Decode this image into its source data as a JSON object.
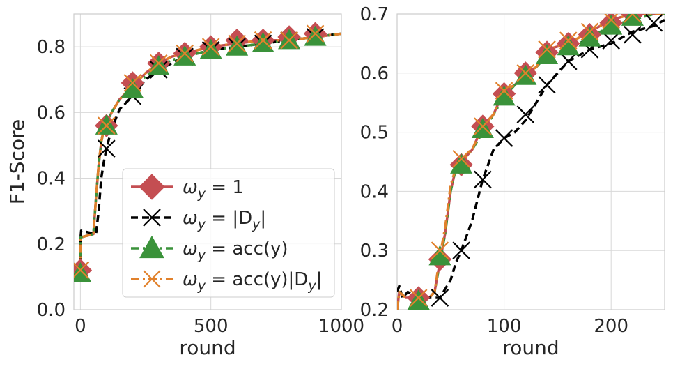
{
  "chart_data": [
    {
      "type": "line",
      "id": "left",
      "xlabel": "round",
      "ylabel": "F1-Score",
      "xlim": [
        -25,
        1000
      ],
      "ylim": [
        0.0,
        0.9
      ],
      "xticks": [
        0,
        500,
        1000
      ],
      "yticks": [
        0.0,
        0.2,
        0.4,
        0.6,
        0.8
      ],
      "xtick_labels": [
        "0",
        "500",
        "1000"
      ],
      "ytick_labels": [
        "0.0",
        "0.2",
        "0.4",
        "0.6",
        "0.8"
      ],
      "grid": true,
      "legend_position": "lower-right",
      "series": [
        {
          "name": "ω_y = 1",
          "key": "s1",
          "x": [
            0,
            1,
            50,
            60,
            70,
            80,
            90,
            100,
            120,
            150,
            200,
            250,
            300,
            350,
            400,
            500,
            600,
            700,
            800,
            900,
            1000
          ],
          "y": [
            0.12,
            0.22,
            0.23,
            0.34,
            0.44,
            0.51,
            0.55,
            0.57,
            0.6,
            0.64,
            0.68,
            0.72,
            0.75,
            0.77,
            0.78,
            0.8,
            0.81,
            0.82,
            0.82,
            0.83,
            0.84
          ],
          "markers_x": [
            0,
            100,
            200,
            300,
            400,
            500,
            600,
            700,
            800,
            900
          ],
          "markers_y": [
            0.12,
            0.56,
            0.69,
            0.75,
            0.78,
            0.8,
            0.82,
            0.82,
            0.83,
            0.84
          ]
        },
        {
          "name": "ω_y = |D_y|",
          "key": "s2",
          "x": [
            0,
            1,
            3,
            60,
            70,
            80,
            90,
            100,
            120,
            150,
            200,
            250,
            300,
            350,
            400,
            500,
            600,
            700,
            800,
            900,
            1000
          ],
          "y": [
            0.12,
            0.22,
            0.24,
            0.23,
            0.3,
            0.4,
            0.45,
            0.49,
            0.55,
            0.61,
            0.65,
            0.7,
            0.73,
            0.75,
            0.77,
            0.79,
            0.8,
            0.81,
            0.82,
            0.83,
            0.84
          ],
          "markers_x": [
            0,
            100,
            200,
            300,
            400,
            500,
            600,
            700,
            800,
            900
          ],
          "markers_y": [
            0.12,
            0.49,
            0.65,
            0.73,
            0.77,
            0.79,
            0.8,
            0.81,
            0.82,
            0.83
          ]
        },
        {
          "name": "ω_y = acc(y)",
          "key": "s3",
          "x": [
            0,
            1,
            50,
            60,
            70,
            80,
            90,
            100,
            120,
            150,
            200,
            250,
            300,
            350,
            400,
            500,
            600,
            700,
            800,
            900,
            1000
          ],
          "y": [
            0.11,
            0.22,
            0.23,
            0.34,
            0.44,
            0.51,
            0.55,
            0.57,
            0.6,
            0.64,
            0.67,
            0.71,
            0.74,
            0.76,
            0.77,
            0.79,
            0.8,
            0.81,
            0.82,
            0.83,
            0.84
          ],
          "markers_x": [
            0,
            100,
            200,
            300,
            400,
            500,
            600,
            700,
            800,
            900
          ],
          "markers_y": [
            0.11,
            0.56,
            0.67,
            0.74,
            0.77,
            0.79,
            0.8,
            0.81,
            0.82,
            0.83
          ]
        },
        {
          "name": "ω_y = acc(y)|D_y|",
          "key": "s4",
          "x": [
            0,
            1,
            50,
            60,
            70,
            80,
            90,
            100,
            120,
            150,
            200,
            250,
            300,
            350,
            400,
            500,
            600,
            700,
            800,
            900,
            1000
          ],
          "y": [
            0.12,
            0.22,
            0.23,
            0.34,
            0.44,
            0.51,
            0.55,
            0.57,
            0.6,
            0.64,
            0.68,
            0.72,
            0.75,
            0.77,
            0.78,
            0.8,
            0.81,
            0.82,
            0.82,
            0.83,
            0.84
          ],
          "markers_x": [
            0,
            100,
            200,
            300,
            400,
            500,
            600,
            700,
            800,
            900
          ],
          "markers_y": [
            0.12,
            0.56,
            0.69,
            0.75,
            0.78,
            0.8,
            0.81,
            0.82,
            0.82,
            0.84
          ]
        }
      ]
    },
    {
      "type": "line",
      "id": "right",
      "xlabel": "round",
      "ylabel": "",
      "xlim": [
        0,
        250
      ],
      "ylim": [
        0.2,
        0.7
      ],
      "xticks": [
        0,
        100,
        200
      ],
      "yticks": [
        0.2,
        0.3,
        0.4,
        0.5,
        0.6,
        0.7
      ],
      "xtick_labels": [
        "0",
        "100",
        "200"
      ],
      "ytick_labels": [
        "0.2",
        "0.3",
        "0.4",
        "0.5",
        "0.6",
        "0.7"
      ],
      "grid": true,
      "series": [
        {
          "name": "ω_y = 1",
          "key": "s1",
          "x": [
            0,
            2,
            8,
            20,
            30,
            35,
            40,
            45,
            50,
            55,
            60,
            70,
            80,
            90,
            100,
            110,
            120,
            130,
            140,
            160,
            180,
            200,
            220,
            240,
            250
          ],
          "y": [
            0.2,
            0.23,
            0.22,
            0.22,
            0.22,
            0.23,
            0.28,
            0.33,
            0.4,
            0.44,
            0.45,
            0.47,
            0.51,
            0.53,
            0.57,
            0.58,
            0.6,
            0.61,
            0.64,
            0.65,
            0.67,
            0.69,
            0.7,
            0.7,
            0.7
          ],
          "markers_x": [
            20,
            40,
            60,
            80,
            100,
            120,
            140,
            160,
            180,
            200,
            220
          ],
          "markers_y": [
            0.22,
            0.285,
            0.445,
            0.51,
            0.565,
            0.6,
            0.635,
            0.65,
            0.665,
            0.685,
            0.7
          ]
        },
        {
          "name": "ω_y = |D_y|",
          "key": "s2",
          "x": [
            0,
            2,
            5,
            10,
            20,
            30,
            40,
            50,
            55,
            60,
            70,
            80,
            90,
            100,
            110,
            120,
            130,
            140,
            160,
            180,
            200,
            220,
            240,
            250
          ],
          "y": [
            0.23,
            0.24,
            0.22,
            0.23,
            0.22,
            0.22,
            0.22,
            0.25,
            0.28,
            0.3,
            0.35,
            0.42,
            0.47,
            0.49,
            0.5,
            0.52,
            0.55,
            0.58,
            0.62,
            0.64,
            0.65,
            0.67,
            0.68,
            0.69
          ],
          "markers_x": [
            40,
            60,
            80,
            100,
            120,
            140,
            160,
            180,
            200,
            220,
            240
          ],
          "markers_y": [
            0.22,
            0.3,
            0.42,
            0.49,
            0.53,
            0.58,
            0.62,
            0.64,
            0.655,
            0.665,
            0.685
          ]
        },
        {
          "name": "ω_y = acc(y)",
          "key": "s3",
          "x": [
            0,
            2,
            8,
            20,
            30,
            35,
            40,
            45,
            50,
            55,
            60,
            70,
            80,
            90,
            100,
            110,
            120,
            130,
            140,
            160,
            180,
            200,
            220,
            240,
            250
          ],
          "y": [
            0.2,
            0.23,
            0.22,
            0.22,
            0.22,
            0.23,
            0.28,
            0.33,
            0.4,
            0.44,
            0.45,
            0.47,
            0.5,
            0.53,
            0.56,
            0.58,
            0.59,
            0.61,
            0.63,
            0.64,
            0.66,
            0.68,
            0.69,
            0.7,
            0.7
          ],
          "markers_x": [
            20,
            40,
            60,
            80,
            100,
            120,
            140,
            160,
            180,
            200,
            220
          ],
          "markers_y": [
            0.215,
            0.29,
            0.445,
            0.505,
            0.56,
            0.595,
            0.63,
            0.645,
            0.66,
            0.68,
            0.695
          ]
        },
        {
          "name": "ω_y = acc(y)|D_y|",
          "key": "s4",
          "x": [
            0,
            2,
            8,
            20,
            30,
            35,
            40,
            45,
            50,
            55,
            60,
            70,
            80,
            90,
            100,
            110,
            120,
            130,
            140,
            160,
            180,
            200,
            220,
            240,
            250
          ],
          "y": [
            0.2,
            0.23,
            0.22,
            0.22,
            0.22,
            0.23,
            0.29,
            0.34,
            0.41,
            0.44,
            0.45,
            0.47,
            0.51,
            0.53,
            0.57,
            0.58,
            0.6,
            0.61,
            0.64,
            0.65,
            0.67,
            0.69,
            0.7,
            0.7,
            0.7
          ],
          "markers_x": [
            20,
            40,
            60,
            80,
            100,
            120,
            140,
            160,
            180,
            200,
            220
          ],
          "markers_y": [
            0.22,
            0.3,
            0.455,
            0.51,
            0.57,
            0.6,
            0.64,
            0.655,
            0.67,
            0.69,
            0.7
          ]
        }
      ]
    }
  ],
  "legend": {
    "items": [
      {
        "key": "s1",
        "text": "ωy = 1",
        "symbol": "omega",
        "sub": "y",
        "rhs": " = 1"
      },
      {
        "key": "s2",
        "text": "ωy = |Dy|",
        "symbol": "omega",
        "sub": "y",
        "rhs": " = |D",
        "rhs_sub": "y",
        "rhs_tail": "|"
      },
      {
        "key": "s3",
        "text": "ωy = acc(y)",
        "symbol": "omega",
        "sub": "y",
        "rhs": " = acc(y)"
      },
      {
        "key": "s4",
        "text": "ωy = acc(y)|Dy|",
        "symbol": "omega",
        "sub": "y",
        "rhs": " = acc(y)|D",
        "rhs_sub": "y",
        "rhs_tail": "|"
      }
    ]
  },
  "styles": {
    "s1": {
      "color": "#c44e52",
      "marker": "diamond",
      "dash": "solid"
    },
    "s2": {
      "color": "#000000",
      "marker": "x",
      "dash": "dashed"
    },
    "s3": {
      "color": "#3a923a",
      "marker": "triangle",
      "dash": "dashdot"
    },
    "s4": {
      "color": "#e1812c",
      "marker": "x",
      "dash": "dashdot"
    }
  }
}
